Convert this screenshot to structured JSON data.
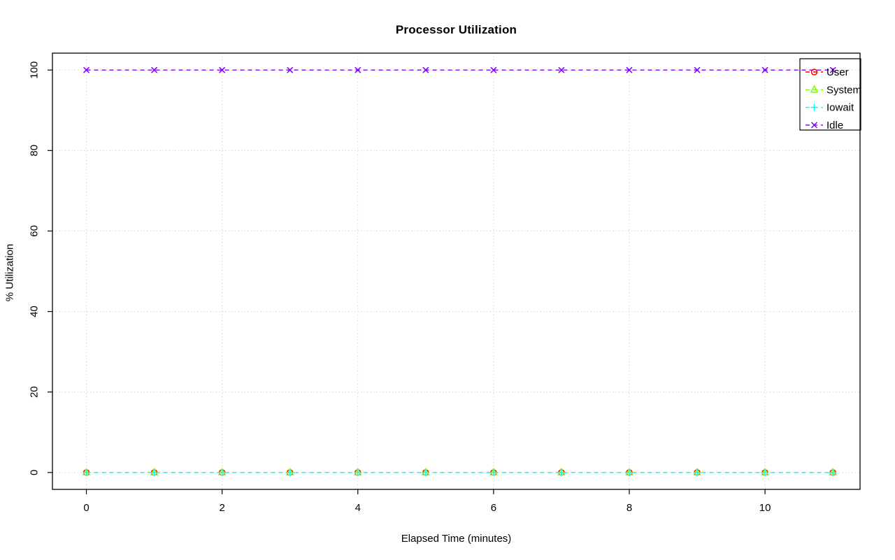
{
  "chart_data": {
    "type": "scatter",
    "title": "Processor Utilization",
    "xlabel": "Elapsed Time (minutes)",
    "ylabel": "% Utilization",
    "xlim": [
      -0.5,
      11.4
    ],
    "ylim": [
      -4.2,
      104.2
    ],
    "x_ticks": [
      0,
      2,
      4,
      6,
      8,
      10
    ],
    "y_ticks": [
      0,
      20,
      40,
      60,
      80,
      100
    ],
    "grid": true,
    "grid_color": "#d4d4d4",
    "box_color": "#000000",
    "legend_position": "top-right",
    "x": [
      0,
      1,
      2,
      3,
      4,
      5,
      6,
      7,
      8,
      9,
      10,
      11
    ],
    "series": [
      {
        "name": "User",
        "color": "#FF0000",
        "marker": "circle",
        "linestyle": "dashed",
        "values": [
          0,
          0,
          0,
          0,
          0,
          0,
          0,
          0,
          0,
          0,
          0,
          0
        ]
      },
      {
        "name": "System",
        "color": "#80FF00",
        "marker": "triangle",
        "linestyle": "dashed",
        "values": [
          0,
          0,
          0,
          0,
          0,
          0,
          0,
          0,
          0,
          0,
          0,
          0
        ]
      },
      {
        "name": "Iowait",
        "color": "#00FFFF",
        "marker": "plus",
        "linestyle": "dashed",
        "values": [
          0,
          0,
          0,
          0,
          0,
          0,
          0,
          0,
          0,
          0,
          0,
          0
        ]
      },
      {
        "name": "Idle",
        "color": "#8000FF",
        "marker": "x",
        "linestyle": "dashed",
        "values": [
          100,
          100,
          100,
          100,
          100,
          100,
          100,
          100,
          100,
          100,
          100,
          100
        ]
      }
    ]
  }
}
